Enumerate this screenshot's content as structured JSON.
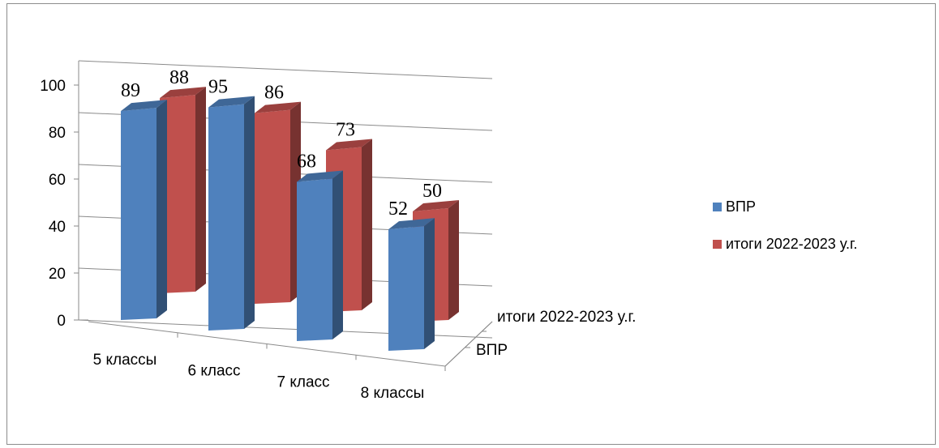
{
  "chart_data": {
    "type": "bar",
    "subtype": "3d-clustered-column",
    "categories": [
      "5 классы",
      "6 класс",
      "7 класс",
      "8 классы"
    ],
    "series": [
      {
        "name": "ВПР",
        "values": [
          89,
          95,
          68,
          52
        ],
        "color": "#4f81bd"
      },
      {
        "name": "итоги 2022-2023 у.г.",
        "values": [
          88,
          86,
          73,
          50
        ],
        "color": "#c0504d"
      }
    ],
    "y_ticks": [
      "0",
      "20",
      "40",
      "60",
      "80",
      "100"
    ],
    "ylim": [
      0,
      100
    ],
    "depth_axis_labels": [
      "итоги 2022-2023 у.г.",
      "ВПР"
    ],
    "grid": true,
    "legend_position": "right"
  },
  "legend": {
    "items": [
      {
        "label": "ВПР",
        "color": "#4f81bd"
      },
      {
        "label": "итоги 2022-2023 у.г.",
        "color": "#c0504d"
      }
    ]
  }
}
